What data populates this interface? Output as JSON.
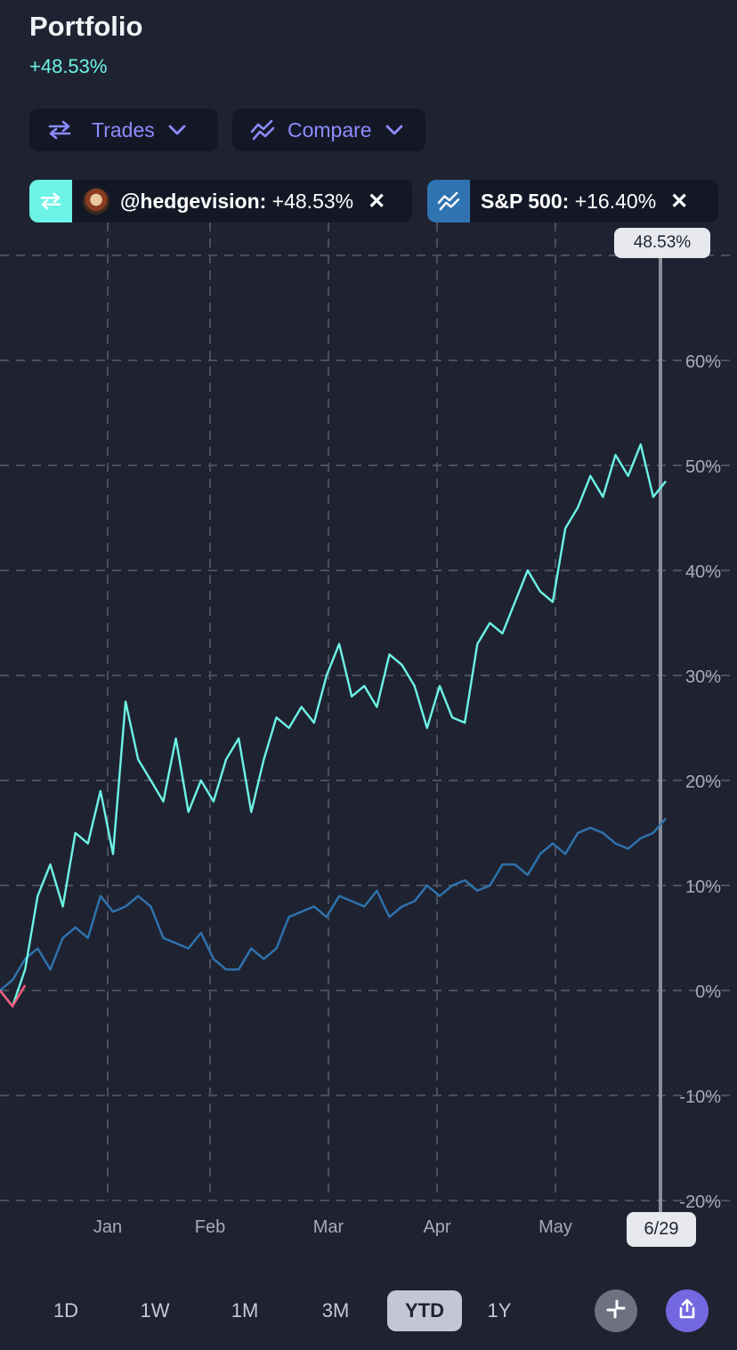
{
  "header": {
    "title": "Portfolio",
    "change": "+48.53%"
  },
  "controls": {
    "trades_label": "Trades",
    "compare_label": "Compare"
  },
  "tags": [
    {
      "handle": "@hedgevision:",
      "value": "+48.53%",
      "close": "✕",
      "icon": "swap-icon",
      "accent": "#6df3e6"
    },
    {
      "handle": "S&P 500:",
      "value": "+16.40%",
      "close": "✕",
      "icon": "trend-icon",
      "accent": "#2f74b0"
    }
  ],
  "tooltip": {
    "value": "48.53%",
    "date": "6/29"
  },
  "ranges": [
    "1D",
    "1W",
    "1M",
    "3M",
    "YTD",
    "1Y"
  ],
  "active_range": "YTD",
  "colors": {
    "background": "#1f2331",
    "portfolio": "#6df3e6",
    "benchmark": "#2f74b0",
    "negative": "#ff5a7a",
    "accent": "#8c8cff"
  },
  "chart_data": {
    "type": "line",
    "xlabels": [
      "Jan",
      "Feb",
      "Mar",
      "Apr",
      "May"
    ],
    "ylabels": [
      "60%",
      "50%",
      "40%",
      "30%",
      "20%",
      "10%",
      "0%",
      "-10%",
      "-20%"
    ],
    "ylim": [
      -20,
      70
    ],
    "grid": true,
    "x": [
      "Dec 24",
      "Dec 27",
      "Dec 30",
      "Jan 2",
      "Jan 5",
      "Jan 9",
      "Jan 13",
      "Jan 17",
      "Jan 20",
      "Jan 24",
      "Jan 27",
      "Jan 31",
      "Feb 3",
      "Feb 7",
      "Feb 10",
      "Feb 14",
      "Feb 17",
      "Feb 21",
      "Feb 25",
      "Mar 1",
      "Mar 4",
      "Mar 8",
      "Mar 11",
      "Mar 15",
      "Mar 18",
      "Mar 22",
      "Mar 25",
      "Mar 29",
      "Apr 1",
      "Apr 5",
      "Apr 8",
      "Apr 12",
      "Apr 15",
      "Apr 19",
      "Apr 22",
      "Apr 26",
      "Apr 29",
      "May 3",
      "May 6",
      "May 10",
      "May 13",
      "May 17",
      "May 20",
      "May 24",
      "May 27",
      "May 31",
      "Jun 3",
      "Jun 7",
      "Jun 10",
      "Jun 14",
      "Jun 17",
      "Jun 21",
      "Jun 24",
      "Jun 29"
    ],
    "series": [
      {
        "name": "@hedgevision",
        "values": [
          0,
          -1.5,
          2,
          9,
          12,
          8,
          15,
          14,
          19,
          13,
          27.5,
          22,
          20,
          18,
          24,
          17,
          20,
          18,
          22,
          24,
          17,
          22,
          26,
          25,
          27,
          25.5,
          30,
          33,
          28,
          29,
          27,
          32,
          31,
          29,
          25,
          29,
          26,
          25.5,
          33,
          35,
          34,
          37,
          40,
          38,
          37,
          44,
          46,
          49,
          47,
          51,
          49,
          52,
          47,
          48.5
        ]
      },
      {
        "name": "S&P 500",
        "values": [
          0,
          1,
          3,
          4,
          2,
          5,
          6,
          5,
          9,
          7.5,
          8,
          9,
          8,
          5,
          4.5,
          4,
          5.5,
          3,
          2,
          2,
          4,
          3,
          4,
          7,
          7.5,
          8,
          7,
          9,
          8.5,
          8,
          9.5,
          7,
          8,
          8.5,
          10,
          9,
          10,
          10.5,
          9.5,
          10,
          12,
          12,
          11,
          13,
          14,
          13,
          15,
          15.5,
          15,
          14,
          13.5,
          14.5,
          15,
          16.4
        ]
      }
    ]
  }
}
